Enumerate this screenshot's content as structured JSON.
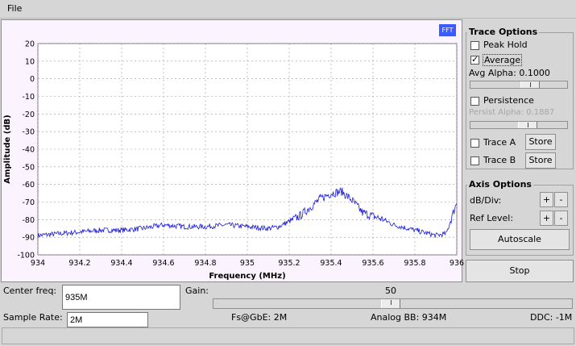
{
  "menu": {
    "file": "File"
  },
  "plot": {
    "fft_button": "FFT",
    "xlabel": "Frequency (MHz)",
    "ylabel": "Amplitude (dB)",
    "x_ticks": [
      "934",
      "934.2",
      "934.4",
      "934.6",
      "934.8",
      "935",
      "935.2",
      "935.4",
      "935.6",
      "935.8",
      "936"
    ],
    "y_ticks": [
      "20",
      "10",
      "0",
      "-10",
      "-20",
      "-30",
      "-40",
      "-50",
      "-60",
      "-70",
      "-80",
      "-90",
      "-100"
    ],
    "trace_color": "#1a1adc"
  },
  "chart_data": {
    "type": "line",
    "xlabel": "Frequency (MHz)",
    "ylabel": "Amplitude (dB)",
    "xlim": [
      934,
      936
    ],
    "ylim": [
      -100,
      20
    ],
    "grid": true,
    "series": [
      {
        "x": [
          934.0,
          934.1,
          934.2,
          934.3,
          934.4,
          934.5,
          934.6,
          934.7,
          934.8,
          934.9,
          935.0,
          935.1,
          935.15,
          935.2,
          935.25,
          935.3,
          935.35,
          935.4,
          935.45,
          935.5,
          935.55,
          935.6,
          935.65,
          935.7,
          935.8,
          935.9,
          935.95,
          936.0
        ],
        "y": [
          -89,
          -88,
          -87,
          -86,
          -86,
          -85,
          -83,
          -84,
          -84,
          -83,
          -84,
          -85,
          -84,
          -81,
          -78,
          -73,
          -68,
          -65,
          -64,
          -69,
          -76,
          -78,
          -80,
          -83,
          -86,
          -89,
          -88,
          -70
        ]
      }
    ]
  },
  "trace_options": {
    "title": "Trace Options",
    "peak_hold": "Peak Hold",
    "average": "Average",
    "avg_alpha": "Avg Alpha: 0.1000",
    "avg_alpha_level": 0.1,
    "persistence": "Persistence",
    "persist_alpha": "Persist Alpha: 0.1887",
    "persist_alpha_level": 0.1887,
    "trace_a": "Trace A",
    "trace_b": "Trace B",
    "store": "Store"
  },
  "axis_options": {
    "title": "Axis Options",
    "db_div": "dB/Div:",
    "ref_level": "Ref Level:",
    "plus": "+",
    "minus": "-",
    "autoscale": "Autoscale"
  },
  "stop": "Stop",
  "controls": {
    "center_freq_label": "Center freq:",
    "center_freq_value": "935M",
    "sample_rate_label": "Sample Rate:",
    "sample_rate_value": "2M",
    "gain_label": "Gain:",
    "gain_value": "50",
    "fs_gbe": "Fs@GbE: 2M",
    "analog_bb": "Analog BB: 934M",
    "ddc": "DDC: -1M"
  }
}
